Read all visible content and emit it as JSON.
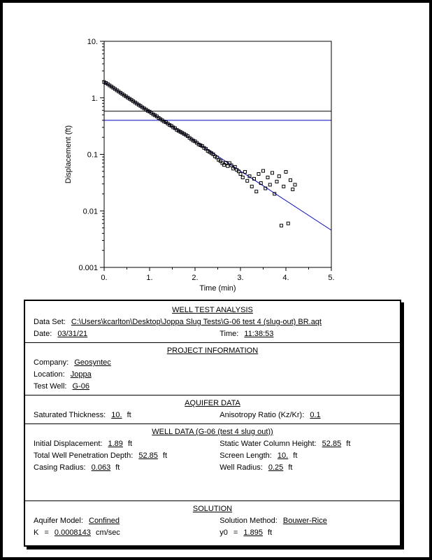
{
  "chart_data": {
    "type": "scatter",
    "title": "",
    "xlabel": "Time (min)",
    "ylabel": "Displacement (ft)",
    "xlim": [
      0,
      5
    ],
    "ylim": [
      0.001,
      10
    ],
    "y_scale": "log",
    "grid": false,
    "x_tick_values": [
      0,
      1,
      2,
      3,
      4,
      5
    ],
    "x_tick_labels": [
      "0.",
      "1.",
      "2.",
      "3.",
      "4.",
      "5."
    ],
    "y_tick_values": [
      10,
      1,
      0.1,
      0.01,
      0.001
    ],
    "y_tick_labels": [
      "10.",
      "1.",
      "0.1",
      "0.01",
      "0.001"
    ],
    "series": [
      {
        "name": "observed-displacement",
        "marker": "open-square",
        "color": "#000000",
        "points": [
          [
            0.0,
            1.9
          ],
          [
            0.04,
            1.83
          ],
          [
            0.08,
            1.75
          ],
          [
            0.12,
            1.66
          ],
          [
            0.16,
            1.58
          ],
          [
            0.2,
            1.51
          ],
          [
            0.24,
            1.43
          ],
          [
            0.28,
            1.36
          ],
          [
            0.32,
            1.29
          ],
          [
            0.36,
            1.23
          ],
          [
            0.4,
            1.17
          ],
          [
            0.44,
            1.11
          ],
          [
            0.48,
            1.06
          ],
          [
            0.52,
            1.01
          ],
          [
            0.56,
            0.96
          ],
          [
            0.6,
            0.92
          ],
          [
            0.64,
            0.87
          ],
          [
            0.68,
            0.83
          ],
          [
            0.72,
            0.79
          ],
          [
            0.76,
            0.75
          ],
          [
            0.8,
            0.72
          ],
          [
            0.84,
            0.68
          ],
          [
            0.88,
            0.65
          ],
          [
            0.92,
            0.62
          ],
          [
            0.96,
            0.59
          ],
          [
            1.0,
            0.57
          ],
          [
            1.04,
            0.54
          ],
          [
            1.08,
            0.51
          ],
          [
            1.12,
            0.49
          ],
          [
            1.16,
            0.47
          ],
          [
            1.2,
            0.44
          ],
          [
            1.24,
            0.42
          ],
          [
            1.28,
            0.4
          ],
          [
            1.32,
            0.38
          ],
          [
            1.36,
            0.37
          ],
          [
            1.4,
            0.35
          ],
          [
            1.44,
            0.33
          ],
          [
            1.48,
            0.32
          ],
          [
            1.52,
            0.3
          ],
          [
            1.56,
            0.29
          ],
          [
            1.6,
            0.27
          ],
          [
            1.64,
            0.26
          ],
          [
            1.68,
            0.25
          ],
          [
            1.72,
            0.24
          ],
          [
            1.76,
            0.23
          ],
          [
            1.8,
            0.22
          ],
          [
            1.84,
            0.21
          ],
          [
            1.88,
            0.195
          ],
          [
            1.92,
            0.185
          ],
          [
            1.96,
            0.175
          ],
          [
            2.0,
            0.17
          ],
          [
            2.04,
            0.16
          ],
          [
            2.08,
            0.15
          ],
          [
            2.12,
            0.145
          ],
          [
            2.16,
            0.14
          ],
          [
            2.2,
            0.13
          ],
          [
            2.24,
            0.125
          ],
          [
            2.28,
            0.115
          ],
          [
            2.32,
            0.11
          ],
          [
            2.36,
            0.105
          ],
          [
            2.4,
            0.1
          ],
          [
            2.44,
            0.092
          ],
          [
            2.48,
            0.088
          ],
          [
            2.52,
            0.08
          ],
          [
            2.56,
            0.076
          ],
          [
            2.6,
            0.07
          ],
          [
            2.64,
            0.065
          ],
          [
            2.68,
            0.071
          ],
          [
            2.72,
            0.062
          ],
          [
            2.76,
            0.07
          ],
          [
            2.8,
            0.064
          ],
          [
            2.84,
            0.056
          ],
          [
            2.88,
            0.06
          ],
          [
            2.92,
            0.053
          ],
          [
            2.96,
            0.05
          ],
          [
            3.0,
            0.045
          ],
          [
            3.05,
            0.039
          ],
          [
            3.1,
            0.049
          ],
          [
            3.15,
            0.034
          ],
          [
            3.2,
            0.041
          ],
          [
            3.25,
            0.027
          ],
          [
            3.3,
            0.037
          ],
          [
            3.35,
            0.022
          ],
          [
            3.4,
            0.045
          ],
          [
            3.45,
            0.031
          ],
          [
            3.5,
            0.051
          ],
          [
            3.55,
            0.025
          ],
          [
            3.6,
            0.039
          ],
          [
            3.65,
            0.029
          ],
          [
            3.7,
            0.047
          ],
          [
            3.75,
            0.02
          ],
          [
            3.8,
            0.033
          ],
          [
            3.85,
            0.041
          ],
          [
            3.9,
            0.0055
          ],
          [
            3.95,
            0.027
          ],
          [
            4.0,
            0.049
          ],
          [
            4.05,
            0.006
          ],
          [
            4.1,
            0.035
          ],
          [
            4.15,
            0.024
          ],
          [
            4.2,
            0.029
          ]
        ]
      }
    ],
    "fit_line": {
      "name": "bouwer-rice-fit-line",
      "color": "#0000bb",
      "from": [
        0,
        1.895
      ],
      "to": [
        5,
        0.00455
      ]
    },
    "reference_lines": [
      {
        "name": "head-range-upper",
        "y": 0.58,
        "color": "#000000"
      },
      {
        "name": "head-range-lower",
        "y": 0.4,
        "color": "#0000bb"
      }
    ]
  },
  "report": {
    "header": {
      "title": "WELL TEST ANALYSIS",
      "dataset_label": "Data Set:",
      "dataset_value": "C:\\Users\\kcarlton\\Desktop\\Joppa Slug Tests\\G-06 test 4 (slug-out) BR.aqt",
      "date_label": "Date:",
      "date_value": "03/31/21",
      "time_label": "Time:",
      "time_value": "11:38:53"
    },
    "project": {
      "title": "PROJECT INFORMATION",
      "company_label": "Company:",
      "company_value": "Geosyntec",
      "location_label": "Location:",
      "location_value": "Joppa",
      "testwell_label": "Test Well:",
      "testwell_value": "G-06"
    },
    "aquifer": {
      "title": "AQUIFER DATA",
      "sat_label": "Saturated Thickness:",
      "sat_value": "10.",
      "sat_unit": "ft",
      "aniso_label": "Anisotropy Ratio (Kz/Kr):",
      "aniso_value": "0.1"
    },
    "well_data": {
      "title": "WELL DATA (G-06 (test 4 slug out))",
      "left": [
        {
          "label": "Initial Displacement:",
          "value": "1.89",
          "unit": "ft"
        },
        {
          "label": "Total Well Penetration Depth:",
          "value": "52.85",
          "unit": "ft"
        },
        {
          "label": "Casing Radius:",
          "value": "0.063",
          "unit": "ft"
        }
      ],
      "right": [
        {
          "label": "Static Water Column Height:",
          "value": "52.85",
          "unit": "ft"
        },
        {
          "label": "Screen Length:",
          "value": "10.",
          "unit": "ft"
        },
        {
          "label": "Well Radius:",
          "value": "0.25",
          "unit": "ft"
        }
      ]
    },
    "solution": {
      "title": "SOLUTION",
      "model_label": "Aquifer Model:",
      "model_value": "Confined",
      "method_label": "Solution Method:",
      "method_value": "Bouwer-Rice",
      "k_label": "K",
      "k_eq": "=",
      "k_value": "0.0008143",
      "k_unit": "cm/sec",
      "y0_label": "y0",
      "y0_eq": "=",
      "y0_value": "1.895",
      "y0_unit": "ft"
    }
  }
}
